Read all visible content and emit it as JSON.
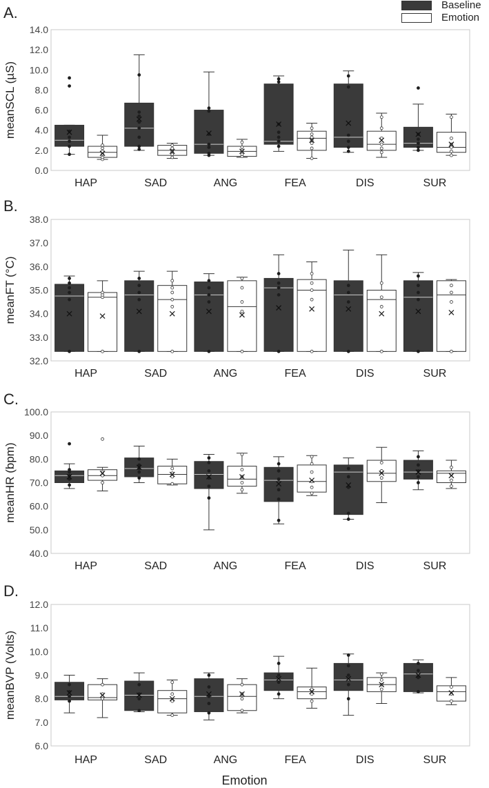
{
  "figure": {
    "x_axis_label": "Emotion",
    "legend": [
      {
        "label": "Baseline",
        "color": "#3a3a3a"
      },
      {
        "label": "Emotion",
        "color": "#ffffff"
      }
    ]
  },
  "chart_data": [
    {
      "type": "box",
      "panel_label": "A.",
      "ylabel": "meanSCL (µS)",
      "ylim": [
        0.0,
        14.0
      ],
      "yticks": [
        "0.0",
        "2.0",
        "4.0",
        "6.0",
        "8.0",
        "10.0",
        "12.0",
        "14.0"
      ],
      "categories": [
        "HAP",
        "SAD",
        "ANG",
        "FEA",
        "DIS",
        "SUR"
      ],
      "series": [
        {
          "name": "Baseline",
          "boxes": [
            {
              "whislo": 1.6,
              "q1": 2.4,
              "med": 3.0,
              "q3": 4.5,
              "whishi": 4.5,
              "mean": 3.8,
              "points": [
                1.6,
                2.4,
                2.9,
                3.3,
                3.9,
                8.4,
                9.2
              ]
            },
            {
              "whislo": 2.0,
              "q1": 2.4,
              "med": 4.2,
              "q3": 6.7,
              "whishi": 11.5,
              "mean": 5.1,
              "points": [
                2.1,
                2.4,
                3.3,
                4.2,
                4.8,
                5.4,
                5.8,
                9.5
              ]
            },
            {
              "whislo": 1.5,
              "q1": 1.7,
              "med": 2.6,
              "q3": 6.0,
              "whishi": 9.8,
              "mean": 3.7,
              "points": [
                1.5,
                1.7,
                2.3,
                2.6,
                3.6,
                5.9,
                6.2
              ]
            },
            {
              "whislo": 1.9,
              "q1": 2.6,
              "med": 2.9,
              "q3": 8.6,
              "whishi": 9.4,
              "mean": 4.6,
              "points": [
                2.4,
                2.9,
                3.3,
                3.8,
                4.6,
                8.8,
                9.1
              ]
            },
            {
              "whislo": 1.8,
              "q1": 2.3,
              "med": 3.3,
              "q3": 8.6,
              "whishi": 9.9,
              "mean": 4.7,
              "points": [
                1.9,
                2.3,
                2.9,
                3.5,
                8.3,
                9.4
              ]
            },
            {
              "whislo": 2.0,
              "q1": 2.3,
              "med": 2.7,
              "q3": 4.3,
              "whishi": 6.6,
              "mean": 3.6,
              "points": [
                2.0,
                2.3,
                2.7,
                3.1,
                3.6,
                8.2
              ]
            }
          ]
        },
        {
          "name": "Emotion",
          "boxes": [
            {
              "whislo": 1.1,
              "q1": 1.3,
              "med": 1.8,
              "q3": 2.4,
              "whishi": 3.5,
              "mean": 1.7,
              "points": [
                1.1,
                1.3,
                1.6,
                1.9,
                2.2,
                2.5
              ]
            },
            {
              "whislo": 1.2,
              "q1": 1.5,
              "med": 2.0,
              "q3": 2.5,
              "whishi": 2.7,
              "mean": 1.9,
              "points": [
                1.3,
                1.6,
                1.9,
                2.2,
                2.5
              ]
            },
            {
              "whislo": 1.3,
              "q1": 1.4,
              "med": 1.9,
              "q3": 2.4,
              "whishi": 3.1,
              "mean": 1.9,
              "points": [
                1.4,
                1.6,
                2.0,
                2.3,
                2.8
              ]
            },
            {
              "whislo": 1.2,
              "q1": 2.0,
              "med": 3.2,
              "q3": 3.9,
              "whishi": 4.7,
              "mean": 3.0,
              "points": [
                1.2,
                2.2,
                2.7,
                3.0,
                3.3,
                3.6,
                4.2
              ]
            },
            {
              "whislo": 1.3,
              "q1": 2.0,
              "med": 2.6,
              "q3": 3.9,
              "whishi": 5.7,
              "mean": 3.0,
              "points": [
                1.8,
                2.2,
                2.6,
                3.2,
                4.2,
                5.3
              ]
            },
            {
              "whislo": 1.5,
              "q1": 1.8,
              "med": 2.3,
              "q3": 3.8,
              "whishi": 5.6,
              "mean": 2.6,
              "points": [
                1.5,
                1.9,
                2.3,
                2.6,
                3.2,
                5.3
              ]
            }
          ]
        }
      ]
    },
    {
      "type": "box",
      "panel_label": "B.",
      "ylabel": "meanFT (°C)",
      "ylim": [
        32.0,
        38.0
      ],
      "yticks": [
        "32.0",
        "33.0",
        "34.0",
        "35.0",
        "36.0",
        "37.0",
        "38.0"
      ],
      "categories": [
        "HAP",
        "SAD",
        "ANG",
        "FEA",
        "DIS",
        "SUR"
      ],
      "series": [
        {
          "name": "Baseline",
          "boxes": [
            {
              "whislo": 32.4,
              "q1": 32.4,
              "med": 34.75,
              "q3": 35.25,
              "whishi": 35.6,
              "mean": 34.0,
              "points": [
                32.4,
                34.6,
                34.9,
                35.1,
                35.3,
                35.5
              ]
            },
            {
              "whislo": 32.4,
              "q1": 32.4,
              "med": 34.8,
              "q3": 35.4,
              "whishi": 35.8,
              "mean": 34.1,
              "points": [
                32.4,
                34.6,
                34.9,
                35.2,
                35.5
              ]
            },
            {
              "whislo": 32.4,
              "q1": 32.4,
              "med": 34.8,
              "q3": 35.35,
              "whishi": 35.7,
              "mean": 34.1,
              "points": [
                32.4,
                34.5,
                34.8,
                35.1,
                35.4
              ]
            },
            {
              "whislo": 32.4,
              "q1": 32.4,
              "med": 35.1,
              "q3": 35.5,
              "whishi": 36.5,
              "mean": 34.25,
              "points": [
                32.4,
                34.8,
                35.1,
                35.3,
                35.7
              ]
            },
            {
              "whislo": 32.4,
              "q1": 32.4,
              "med": 34.8,
              "q3": 35.4,
              "whishi": 36.7,
              "mean": 34.2,
              "points": [
                32.4,
                34.5,
                34.9,
                35.2
              ]
            },
            {
              "whislo": 32.4,
              "q1": 32.4,
              "med": 34.7,
              "q3": 35.4,
              "whishi": 35.75,
              "mean": 34.1,
              "points": [
                32.4,
                34.6,
                34.9,
                35.2,
                35.6
              ]
            }
          ]
        },
        {
          "name": "Emotion",
          "boxes": [
            {
              "whislo": 32.4,
              "q1": 32.4,
              "med": 34.7,
              "q3": 34.9,
              "whishi": 35.4,
              "mean": 33.9,
              "points": [
                32.4,
                34.7,
                34.8,
                34.9
              ]
            },
            {
              "whislo": 32.4,
              "q1": 32.4,
              "med": 34.6,
              "q3": 35.2,
              "whishi": 35.8,
              "mean": 34.0,
              "points": [
                32.4,
                34.3,
                34.6,
                34.9,
                35.1,
                35.4
              ]
            },
            {
              "whislo": 32.4,
              "q1": 32.4,
              "med": 34.3,
              "q3": 35.4,
              "whishi": 35.55,
              "mean": 33.95,
              "points": [
                32.4,
                34.1,
                34.5,
                35.1,
                35.5
              ]
            },
            {
              "whislo": 32.4,
              "q1": 32.4,
              "med": 35.0,
              "q3": 35.45,
              "whishi": 36.2,
              "mean": 34.2,
              "points": [
                32.4,
                34.6,
                35.0,
                35.3,
                35.7
              ]
            },
            {
              "whislo": 32.4,
              "q1": 32.4,
              "med": 34.6,
              "q3": 35.0,
              "whishi": 36.5,
              "mean": 34.0,
              "points": [
                32.4,
                34.3,
                34.7,
                35.3
              ]
            },
            {
              "whislo": 32.4,
              "q1": 32.4,
              "med": 34.8,
              "q3": 35.4,
              "whishi": 35.45,
              "mean": 34.05,
              "points": [
                32.4,
                34.5,
                34.9,
                35.2
              ]
            }
          ]
        }
      ]
    },
    {
      "type": "box",
      "panel_label": "C.",
      "ylabel": "meanHR (bpm)",
      "ylim": [
        40.0,
        100.0
      ],
      "yticks": [
        "40.0",
        "50.0",
        "60.0",
        "70.0",
        "80.0",
        "90.0",
        "100.0"
      ],
      "categories": [
        "HAP",
        "SAD",
        "ANG",
        "FEA",
        "DIS",
        "SUR"
      ],
      "series": [
        {
          "name": "Baseline",
          "boxes": [
            {
              "whislo": 67.5,
              "q1": 70.0,
              "med": 73.0,
              "q3": 75.0,
              "whishi": 78.0,
              "mean": 72.5,
              "points": [
                69.0,
                71.5,
                73.0,
                74.5,
                75.5,
                86.5
              ]
            },
            {
              "whislo": 70.0,
              "q1": 72.5,
              "med": 76.0,
              "q3": 80.5,
              "whishi": 85.5,
              "mean": 76.5,
              "points": [
                72.0,
                74.5,
                76.0,
                77.5,
                80.0
              ]
            },
            {
              "whislo": 50.0,
              "q1": 67.5,
              "med": 73.5,
              "q3": 79.0,
              "whishi": 82.0,
              "mean": 72.5,
              "points": [
                63.5,
                68.5,
                72.0,
                75.0,
                78.5,
                80.5
              ]
            },
            {
              "whislo": 52.5,
              "q1": 62.0,
              "med": 71.0,
              "q3": 76.5,
              "whishi": 81.0,
              "mean": 69.5,
              "points": [
                54.0,
                63.0,
                67.0,
                71.5,
                75.0,
                78.0
              ]
            },
            {
              "whislo": 54.5,
              "q1": 56.5,
              "med": 74.5,
              "q3": 77.5,
              "whishi": 80.5,
              "mean": 69.0,
              "points": [
                54.5,
                57.0,
                68.0,
                72.5,
                76.0
              ]
            },
            {
              "whislo": 67.0,
              "q1": 71.5,
              "med": 74.5,
              "q3": 79.5,
              "whishi": 83.5,
              "mean": 74.5,
              "points": [
                70.0,
                72.5,
                75.0,
                77.5,
                81.0
              ]
            }
          ]
        },
        {
          "name": "Emotion",
          "boxes": [
            {
              "whislo": 66.5,
              "q1": 71.0,
              "med": 73.0,
              "q3": 75.5,
              "whishi": 76.5,
              "mean": 74.0,
              "points": [
                70.0,
                73.0,
                74.5,
                88.5
              ]
            },
            {
              "whislo": 69.0,
              "q1": 69.5,
              "med": 73.5,
              "q3": 77.0,
              "whishi": 80.0,
              "mean": 73.5,
              "points": [
                69.5,
                72.5,
                74.0,
                76.0
              ]
            },
            {
              "whislo": 65.5,
              "q1": 68.5,
              "med": 71.5,
              "q3": 77.0,
              "whishi": 82.5,
              "mean": 72.5,
              "points": [
                67.0,
                70.0,
                72.5,
                75.5,
                82.0
              ]
            },
            {
              "whislo": 64.5,
              "q1": 66.0,
              "med": 70.5,
              "q3": 77.5,
              "whishi": 81.5,
              "mean": 71.0,
              "points": [
                65.5,
                68.0,
                70.5,
                74.5,
                78.0,
                81.0
              ]
            },
            {
              "whislo": 61.5,
              "q1": 70.5,
              "med": 74.0,
              "q3": 79.5,
              "whishi": 85.0,
              "mean": 74.0,
              "points": [
                72.0,
                75.0,
                78.5
              ]
            },
            {
              "whislo": 67.5,
              "q1": 70.0,
              "med": 74.0,
              "q3": 75.0,
              "whishi": 79.5,
              "mean": 73.0,
              "points": [
                68.5,
                71.0,
                73.5,
                76.5
              ]
            }
          ]
        }
      ]
    },
    {
      "type": "box",
      "panel_label": "D.",
      "ylabel": "meanBVP (Volts)",
      "ylim": [
        6.0,
        12.0
      ],
      "yticks": [
        "6.0",
        "7.0",
        "8.0",
        "9.0",
        "10.0",
        "11.0",
        "12.0"
      ],
      "categories": [
        "HAP",
        "SAD",
        "ANG",
        "FEA",
        "DIS",
        "SUR"
      ],
      "series": [
        {
          "name": "Baseline",
          "boxes": [
            {
              "whislo": 7.4,
              "q1": 7.95,
              "med": 8.1,
              "q3": 8.7,
              "whishi": 9.0,
              "mean": 8.25,
              "points": [
                7.9,
                8.1,
                8.3,
                8.6
              ]
            },
            {
              "whislo": 7.45,
              "q1": 7.5,
              "med": 8.15,
              "q3": 8.75,
              "whishi": 9.1,
              "mean": 8.15,
              "points": [
                7.5,
                8.0,
                8.2,
                8.6
              ]
            },
            {
              "whislo": 7.1,
              "q1": 7.45,
              "med": 8.1,
              "q3": 8.85,
              "whishi": 9.1,
              "mean": 8.2,
              "points": [
                7.4,
                7.8,
                8.1,
                8.5,
                9.0
              ]
            },
            {
              "whislo": 8.0,
              "q1": 8.35,
              "med": 8.8,
              "q3": 9.1,
              "whishi": 9.8,
              "mean": 8.85,
              "points": [
                8.2,
                8.7,
                9.0,
                9.5
              ]
            },
            {
              "whislo": 7.3,
              "q1": 8.35,
              "med": 8.8,
              "q3": 9.5,
              "whishi": 9.9,
              "mean": 8.85,
              "points": [
                8.0,
                8.6,
                9.0,
                9.4,
                9.85
              ]
            },
            {
              "whislo": 8.25,
              "q1": 8.3,
              "med": 9.05,
              "q3": 9.5,
              "whishi": 9.65,
              "mean": 9.0,
              "points": [
                8.3,
                8.9,
                9.2,
                9.5
              ]
            }
          ]
        },
        {
          "name": "Emotion",
          "boxes": [
            {
              "whislo": 7.2,
              "q1": 7.95,
              "med": 8.05,
              "q3": 8.6,
              "whishi": 8.85,
              "mean": 8.15,
              "points": [
                8.0,
                8.2,
                8.6
              ]
            },
            {
              "whislo": 7.3,
              "q1": 7.4,
              "med": 8.0,
              "q3": 8.35,
              "whishi": 8.8,
              "mean": 8.0,
              "points": [
                7.3,
                7.9,
                8.2,
                8.7
              ]
            },
            {
              "whislo": 7.4,
              "q1": 7.5,
              "med": 8.1,
              "q3": 8.6,
              "whishi": 8.85,
              "mean": 8.2,
              "points": [
                7.5,
                8.0,
                8.2,
                8.6
              ]
            },
            {
              "whislo": 7.6,
              "q1": 8.0,
              "med": 8.3,
              "q3": 8.5,
              "whishi": 9.3,
              "mean": 8.3,
              "points": [
                7.9,
                8.2,
                8.4
              ]
            },
            {
              "whislo": 7.8,
              "q1": 8.3,
              "med": 8.6,
              "q3": 8.9,
              "whishi": 9.1,
              "mean": 8.6,
              "points": [
                8.4,
                8.6,
                8.8,
                9.05
              ]
            },
            {
              "whislo": 7.75,
              "q1": 7.9,
              "med": 8.3,
              "q3": 8.55,
              "whishi": 8.9,
              "mean": 8.25,
              "points": [
                7.9,
                8.2,
                8.5
              ]
            }
          ]
        }
      ]
    }
  ]
}
